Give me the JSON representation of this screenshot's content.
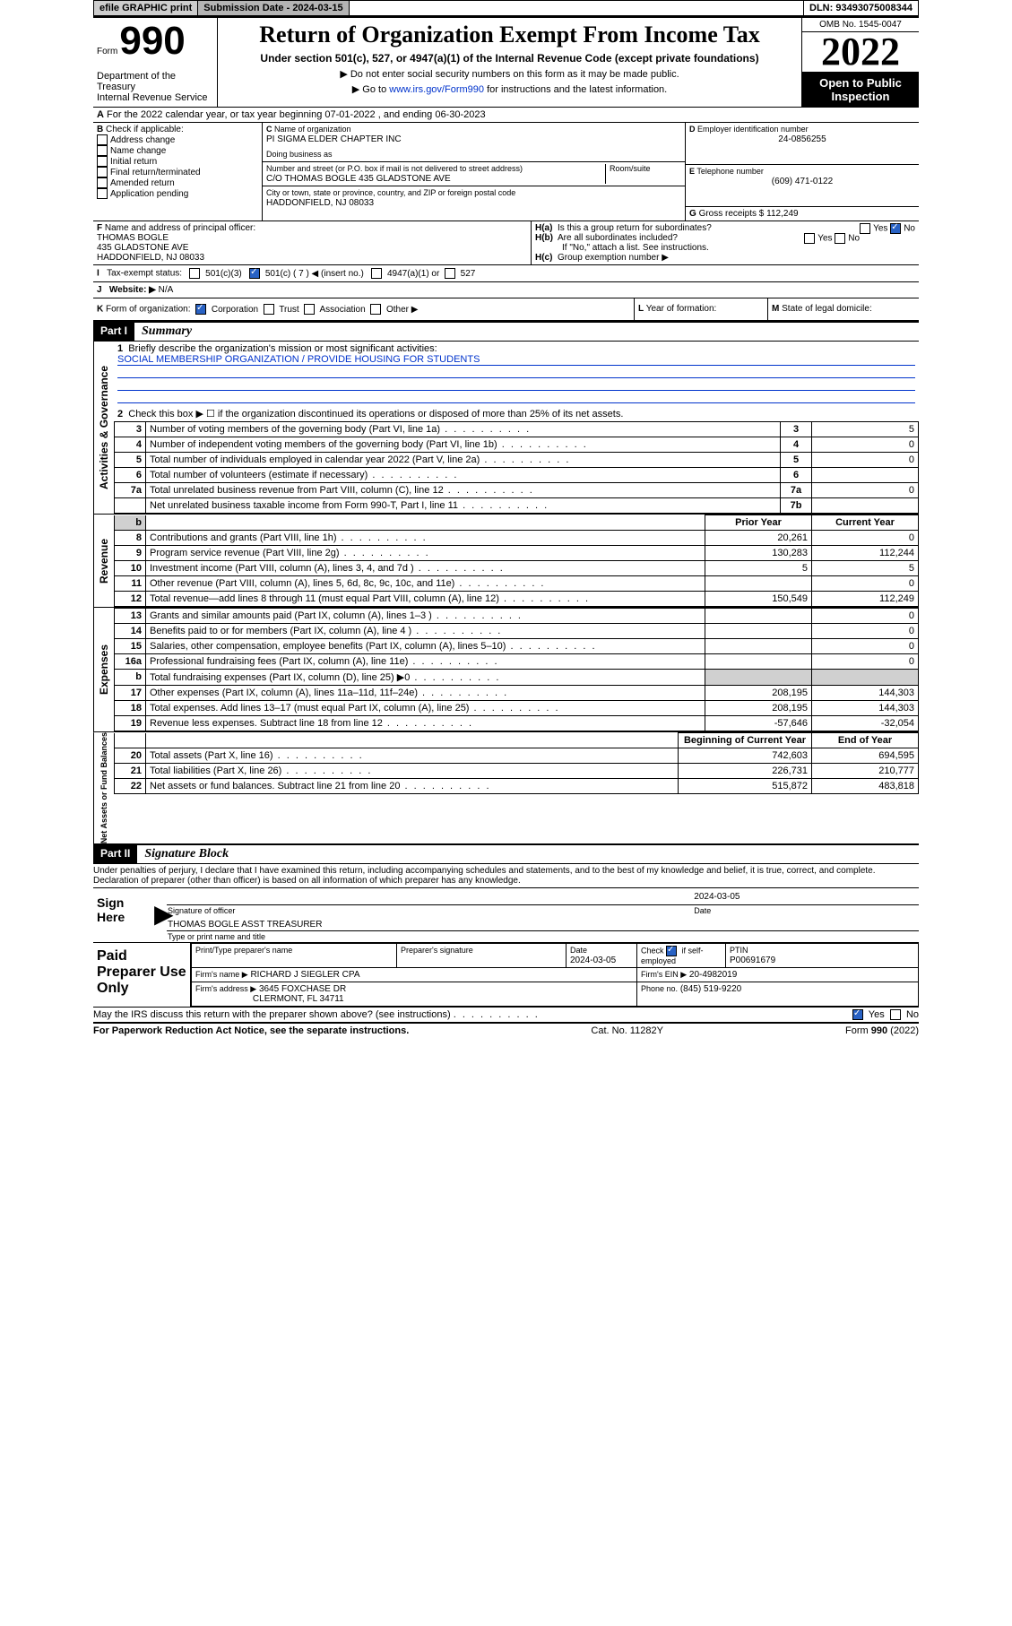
{
  "colors": {
    "link": "#0033cc",
    "checkbox": "#2962c4",
    "grey": "#d0d0d0",
    "btn1": "#cdcdcd",
    "btn2": "#b4b4b4"
  },
  "top": {
    "efile": "efile GRAPHIC print",
    "sub_label": "Submission Date - 2024-03-15",
    "dln_label": "DLN: 93493075008344"
  },
  "header": {
    "form_word": "Form",
    "form_no": "990",
    "dept": "Department of the Treasury",
    "irs": "Internal Revenue Service",
    "title": "Return of Organization Exempt From Income Tax",
    "sub": "Under section 501(c), 527, or 4947(a)(1) of the Internal Revenue Code (except private foundations)",
    "note1": "Do not enter social security numbers on this form as it may be made public.",
    "note2_pre": "Go to ",
    "note2_link": "www.irs.gov/Form990",
    "note2_post": " for instructions and the latest information.",
    "omb": "OMB No. 1545-0047",
    "year": "2022",
    "open": "Open to Public Inspection"
  },
  "A": {
    "line": "For the 2022 calendar year, or tax year beginning 07-01-2022    , and ending 06-30-2023",
    "B_label": "Check if applicable:",
    "B_opts": [
      "Address change",
      "Name change",
      "Initial return",
      "Final return/terminated",
      "Amended return",
      "Application pending"
    ],
    "C_label": "Name of organization",
    "C_name": "PI SIGMA ELDER CHAPTER INC",
    "dba_label": "Doing business as",
    "addr_label": "Number and street (or P.O. box if mail is not delivered to street address)",
    "room_label": "Room/suite",
    "addr": "C/O THOMAS BOGLE 435 GLADSTONE AVE",
    "city_label": "City or town, state or province, country, and ZIP or foreign postal code",
    "city": "HADDONFIELD, NJ  08033",
    "D_label": "Employer identification number",
    "D_val": "24-0856255",
    "E_label": "Telephone number",
    "E_val": "(609) 471-0122",
    "G_label": "Gross receipts $",
    "G_val": "112,249",
    "F_label": "Name and address of principal officer:",
    "F_name": "THOMAS BOGLE",
    "F_addr1": "435 GLADSTONE AVE",
    "F_addr2": "HADDONFIELD, NJ  08033",
    "Ha": "Is this a group return for subordinates?",
    "Hb": "Are all subordinates included?",
    "Hno": "If \"No,\" attach a list. See instructions.",
    "Hc": "Group exemption number ▶",
    "yes": "Yes",
    "no": "No",
    "I_label": "Tax-exempt status:",
    "I_501c3": "501(c)(3)",
    "I_501c": "501(c) ( 7 ) ◀ (insert no.)",
    "I_4947": "4947(a)(1) or",
    "I_527": "527",
    "J_label": "Website: ▶",
    "J_val": "N/A",
    "K_label": "Form of organization:",
    "K_opts": [
      "Corporation",
      "Trust",
      "Association",
      "Other ▶"
    ],
    "L_label": "Year of formation:",
    "M_label": "State of legal domicile:"
  },
  "part1": {
    "hdr": "Part I",
    "title": "Summary",
    "q1": "Briefly describe the organization's mission or most significant activities:",
    "q1a": "SOCIAL MEMBERSHIP ORGANIZATION / PROVIDE HOUSING FOR STUDENTS",
    "q2": "Check this box ▶ ☐  if the organization discontinued its operations or disposed of more than 25% of its net assets.",
    "gov_label": "Activities & Governance",
    "rev_label": "Revenue",
    "exp_label": "Expenses",
    "net_label": "Net Assets or Fund Balances",
    "rows_gov": [
      {
        "n": "3",
        "t": "Number of voting members of the governing body (Part VI, line 1a)",
        "box": "3",
        "v": "5"
      },
      {
        "n": "4",
        "t": "Number of independent voting members of the governing body (Part VI, line 1b)",
        "box": "4",
        "v": "0"
      },
      {
        "n": "5",
        "t": "Total number of individuals employed in calendar year 2022 (Part V, line 2a)",
        "box": "5",
        "v": "0"
      },
      {
        "n": "6",
        "t": "Total number of volunteers (estimate if necessary)",
        "box": "6",
        "v": ""
      },
      {
        "n": "7a",
        "t": "Total unrelated business revenue from Part VIII, column (C), line 12",
        "box": "7a",
        "v": "0"
      },
      {
        "n": "",
        "t": "Net unrelated business taxable income from Form 990-T, Part I, line 11",
        "box": "7b",
        "v": ""
      }
    ],
    "col_prior": "Prior Year",
    "col_curr": "Current Year",
    "rows_rev": [
      {
        "n": "8",
        "t": "Contributions and grants (Part VIII, line 1h)",
        "p": "20,261",
        "c": "0"
      },
      {
        "n": "9",
        "t": "Program service revenue (Part VIII, line 2g)",
        "p": "130,283",
        "c": "112,244"
      },
      {
        "n": "10",
        "t": "Investment income (Part VIII, column (A), lines 3, 4, and 7d )",
        "p": "5",
        "c": "5"
      },
      {
        "n": "11",
        "t": "Other revenue (Part VIII, column (A), lines 5, 6d, 8c, 9c, 10c, and 11e)",
        "p": "",
        "c": "0"
      },
      {
        "n": "12",
        "t": "Total revenue—add lines 8 through 11 (must equal Part VIII, column (A), line 12)",
        "p": "150,549",
        "c": "112,249"
      }
    ],
    "rows_exp": [
      {
        "n": "13",
        "t": "Grants and similar amounts paid (Part IX, column (A), lines 1–3 )",
        "p": "",
        "c": "0"
      },
      {
        "n": "14",
        "t": "Benefits paid to or for members (Part IX, column (A), line 4 )",
        "p": "",
        "c": "0"
      },
      {
        "n": "15",
        "t": "Salaries, other compensation, employee benefits (Part IX, column (A), lines 5–10)",
        "p": "",
        "c": "0"
      },
      {
        "n": "16a",
        "t": "Professional fundraising fees (Part IX, column (A), line 11e)",
        "p": "",
        "c": "0"
      },
      {
        "n": "b",
        "t": "Total fundraising expenses (Part IX, column (D), line 25) ▶0",
        "p": "grey",
        "c": "grey"
      },
      {
        "n": "17",
        "t": "Other expenses (Part IX, column (A), lines 11a–11d, 11f–24e)",
        "p": "208,195",
        "c": "144,303"
      },
      {
        "n": "18",
        "t": "Total expenses. Add lines 13–17 (must equal Part IX, column (A), line 25)",
        "p": "208,195",
        "c": "144,303"
      },
      {
        "n": "19",
        "t": "Revenue less expenses. Subtract line 18 from line 12",
        "p": "-57,646",
        "c": "-32,054"
      }
    ],
    "col_beg": "Beginning of Current Year",
    "col_end": "End of Year",
    "rows_net": [
      {
        "n": "20",
        "t": "Total assets (Part X, line 16)",
        "p": "742,603",
        "c": "694,595"
      },
      {
        "n": "21",
        "t": "Total liabilities (Part X, line 26)",
        "p": "226,731",
        "c": "210,777"
      },
      {
        "n": "22",
        "t": "Net assets or fund balances. Subtract line 21 from line 20",
        "p": "515,872",
        "c": "483,818"
      }
    ]
  },
  "part2": {
    "hdr": "Part II",
    "title": "Signature Block",
    "decl": "Under penalties of perjury, I declare that I have examined this return, including accompanying schedules and statements, and to the best of my knowledge and belief, it is true, correct, and complete. Declaration of preparer (other than officer) is based on all information of which preparer has any knowledge.",
    "sign_here": "Sign Here",
    "sig_officer": "Signature of officer",
    "sig_date": "Date",
    "sig_date_val": "2024-03-05",
    "sig_name": "THOMAS BOGLE  ASST TREASURER",
    "sig_name_label": "Type or print name and title",
    "paid": "Paid Preparer Use Only",
    "pp_name_label": "Print/Type preparer's name",
    "pp_sig_label": "Preparer's signature",
    "pp_date_label": "Date",
    "pp_date": "2024-03-05",
    "pp_check": "Check ☑ if self-employed",
    "ptin_label": "PTIN",
    "ptin": "P00691679",
    "firm_name_label": "Firm's name    ▶",
    "firm_name": "RICHARD J SIEGLER CPA",
    "firm_ein_label": "Firm's EIN ▶",
    "firm_ein": "20-4982019",
    "firm_addr_label": "Firm's address ▶",
    "firm_addr1": "3645 FOXCHASE DR",
    "firm_addr2": "CLERMONT, FL  34711",
    "firm_phone_label": "Phone no.",
    "firm_phone": "(845) 519-9220",
    "may": "May the IRS discuss this return with the preparer shown above? (see instructions)"
  },
  "footer": {
    "pra": "For Paperwork Reduction Act Notice, see the separate instructions.",
    "cat": "Cat. No. 11282Y",
    "form": "Form 990 (2022)"
  }
}
